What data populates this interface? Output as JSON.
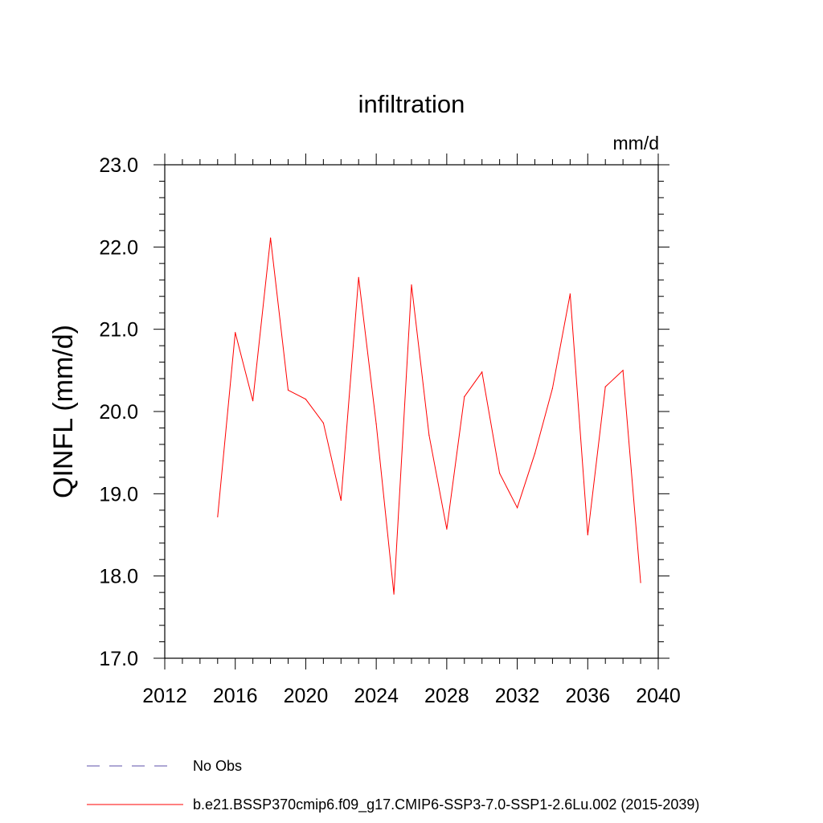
{
  "chart_data": {
    "type": "line",
    "title": "infiltration",
    "units_label": "mm/d",
    "ylabel": "QINFL  (mm/d)",
    "xlabel": "",
    "xlim": [
      2012,
      2040
    ],
    "ylim": [
      17.0,
      23.0
    ],
    "x_ticks": [
      "2012",
      "2016",
      "2020",
      "2024",
      "2028",
      "2032",
      "2036",
      "2040"
    ],
    "y_ticks": [
      "17.0",
      "18.0",
      "19.0",
      "20.0",
      "21.0",
      "22.0",
      "23.0"
    ],
    "grid": false,
    "series": [
      {
        "name": "b.e21.BSSP370cmip6.f09_g17.CMIP6-SSP3-7.0-SSP1-2.6Lu.002 (2015-2039)",
        "color": "#ff0000",
        "x": [
          2015,
          2016,
          2017,
          2018,
          2019,
          2020,
          2021,
          2022,
          2023,
          2024,
          2025,
          2026,
          2027,
          2028,
          2029,
          2030,
          2031,
          2032,
          2033,
          2034,
          2035,
          2036,
          2037,
          2038,
          2039
        ],
        "values": [
          18.72,
          20.96,
          20.13,
          22.11,
          20.26,
          20.15,
          19.86,
          18.92,
          21.63,
          19.85,
          17.78,
          21.54,
          19.71,
          18.57,
          20.18,
          20.48,
          19.25,
          18.83,
          19.49,
          20.28,
          21.43,
          18.5,
          20.3,
          20.5,
          17.92
        ]
      }
    ],
    "legend": {
      "placement": "bottom-left",
      "entries": [
        {
          "label": "No Obs",
          "style": "dashed",
          "color": "#5c4fa8"
        },
        {
          "label": "b.e21.BSSP370cmip6.f09_g17.CMIP6-SSP3-7.0-SSP1-2.6Lu.002 (2015-2039)",
          "style": "solid",
          "color": "#ff0000"
        }
      ]
    }
  }
}
